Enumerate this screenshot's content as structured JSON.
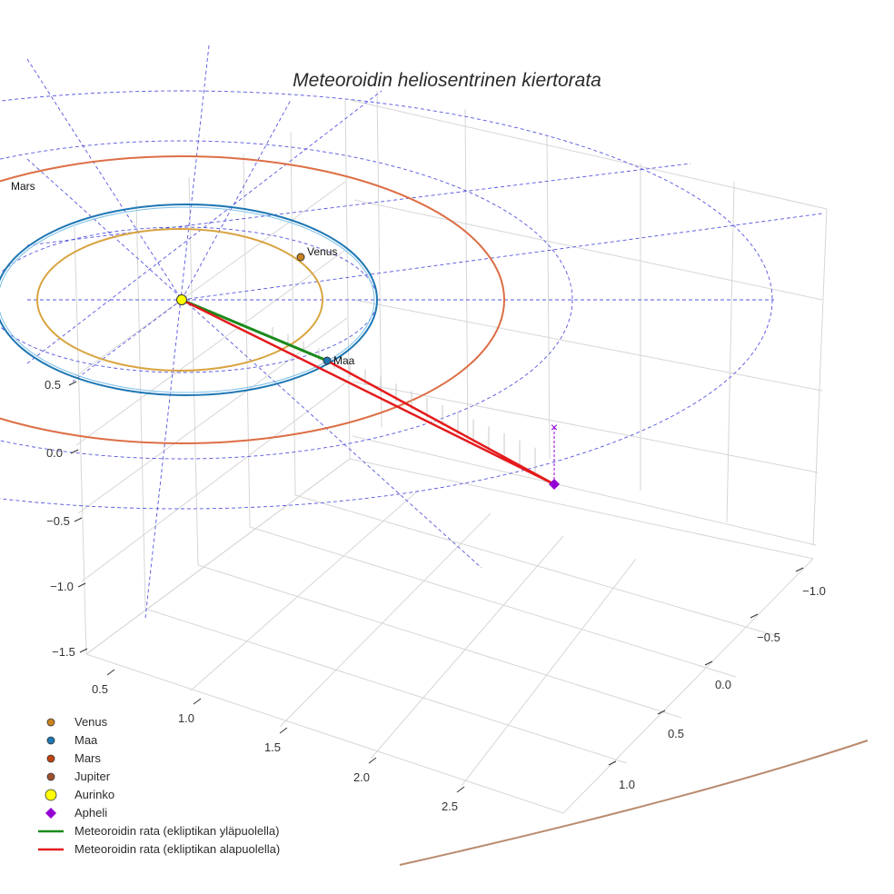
{
  "chart_data": {
    "type": "scatter",
    "title": "Meteoroidin heliosentrinen kiertorata",
    "axes": {
      "x_ticks": [
        "0.5",
        "1.0",
        "1.5",
        "2.0",
        "2.5"
      ],
      "y_ticks": [
        "−1.0",
        "−0.5",
        "0.0",
        "0.5",
        "1.0"
      ],
      "z_ticks": [
        "−1.5",
        "−1.0",
        "−0.5",
        "0.0",
        "0.5"
      ]
    },
    "grid": true,
    "legend_position": "bottom-left",
    "planet_labels": [
      "Venus",
      "Maa",
      "Mars"
    ],
    "series": [
      {
        "name": "Venus",
        "marker": "circle",
        "color": "#c9831f"
      },
      {
        "name": "Maa",
        "marker": "circle",
        "color": "#1f77b4"
      },
      {
        "name": "Mars",
        "marker": "circle",
        "color": "#c1440e"
      },
      {
        "name": "Jupiter",
        "marker": "circle",
        "color": "#a0522d"
      },
      {
        "name": "Aurinko",
        "marker": "circle",
        "color": "#ffff00"
      },
      {
        "name": "Apheli",
        "marker": "diamond",
        "color": "#9400d3"
      },
      {
        "name": "Meteoroidin rata (ekliptikan yläpuolella)",
        "marker": "line",
        "color": "#1a8a1a"
      },
      {
        "name": "Meteoroidin rata (ekliptikan alapuolella)",
        "marker": "line",
        "color": "#e41a1c"
      }
    ],
    "meteoroid_orbit": {
      "above_ecliptic": [
        [
          0.0,
          0.0
        ],
        [
          1.0,
          0.0
        ]
      ],
      "below_ecliptic": [
        [
          1.0,
          0.0
        ],
        [
          2.8,
          -0.35
        ]
      ],
      "aphelion": [
        2.8,
        -0.35
      ]
    }
  }
}
